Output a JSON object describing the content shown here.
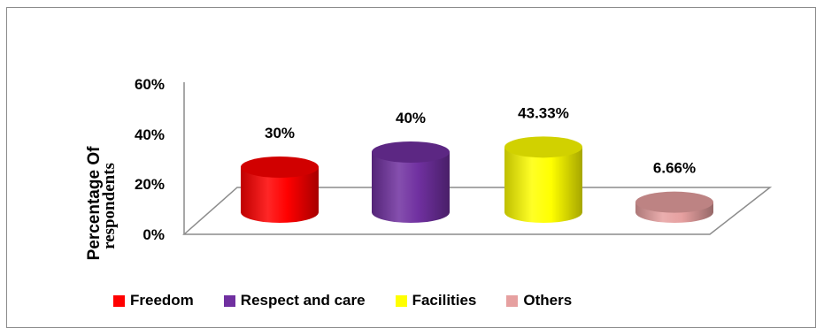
{
  "chart_data": {
    "type": "bar",
    "style": "3d-cylinder",
    "categories": [
      "Freedom",
      "Respect and care",
      "Facilities",
      "Others"
    ],
    "values": [
      30,
      40,
      43.33,
      6.66
    ],
    "data_labels": [
      "30%",
      "40%",
      "43.33%",
      "6.66%"
    ],
    "colors": [
      "#ff0000",
      "#7030a0",
      "#ffff00",
      "#e6a0a0"
    ],
    "ylabel": [
      "Percentage Of",
      "respondents"
    ],
    "yticks": [
      "0%",
      "20%",
      "40%",
      "60%"
    ],
    "ylim": [
      0,
      60
    ],
    "grid": false,
    "legend": "bottom",
    "legend_entries": [
      "Freedom",
      "Respect and care",
      "Facilities",
      "Others"
    ]
  }
}
